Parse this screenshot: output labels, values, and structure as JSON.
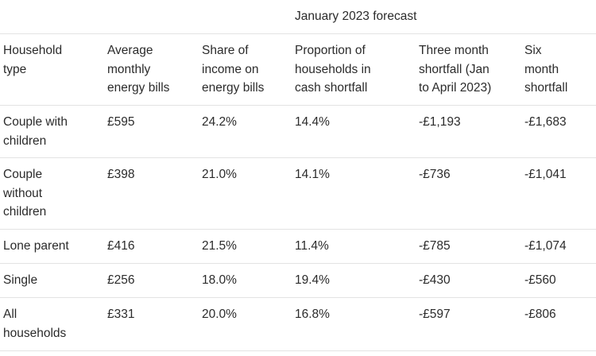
{
  "forecast_caption": "January 2023 forecast",
  "headers": [
    "Household\ntype",
    "Average\nmonthly\nenergy bills",
    "Share of\nincome on\nenergy bills",
    "Proportion of\nhouseholds in\ncash shortfall",
    "Three month\nshortfall (Jan\nto April 2023)",
    "Six\nmonth\nshortfall"
  ],
  "rows": [
    [
      "Couple with\nchildren",
      "£595",
      "24.2%",
      "14.4%",
      "-£1,193",
      "-£1,683"
    ],
    [
      "Couple\nwithout\nchildren",
      "£398",
      "21.0%",
      "14.1%",
      "-£736",
      "-£1,041"
    ],
    [
      "Lone parent",
      "£416",
      "21.5%",
      "11.4%",
      "-£785",
      "-£1,074"
    ],
    [
      "Single",
      "£256",
      "18.0%",
      "19.4%",
      "-£430",
      "-£560"
    ],
    [
      "All\nhouseholds",
      "£331",
      "20.0%",
      "16.8%",
      "-£597",
      "-£806"
    ]
  ]
}
